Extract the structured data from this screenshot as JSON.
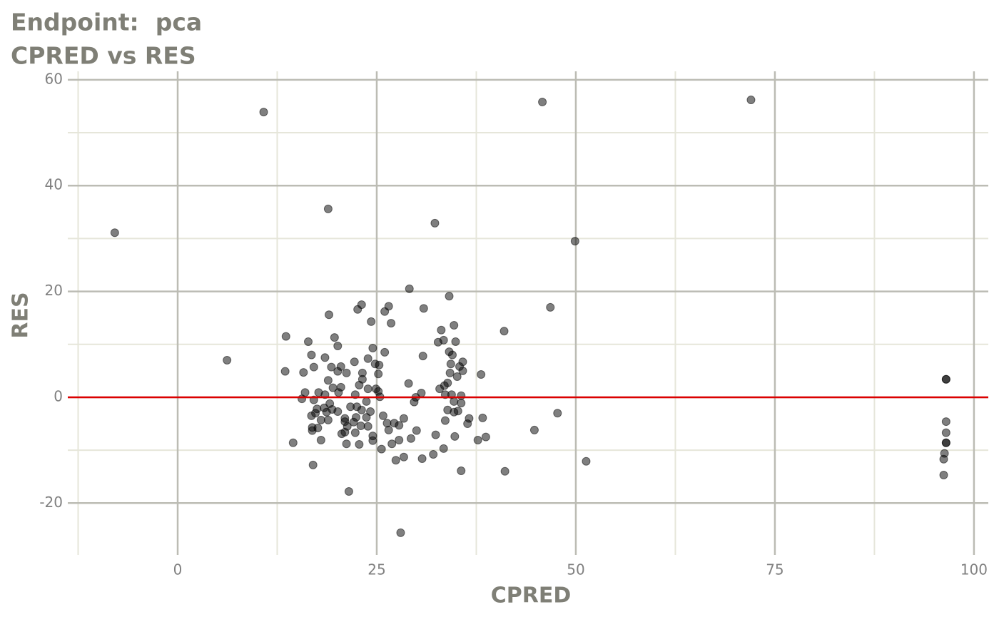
{
  "chart_data": {
    "type": "scatter",
    "title": "Endpoint:  pca",
    "subtitle": "CPRED vs RES",
    "x_label": "CPRED",
    "y_label": "RES",
    "xlim": [
      -13.8,
      101.8
    ],
    "ylim": [
      -29.8,
      61.6
    ],
    "xticks": [
      0,
      25,
      50,
      75,
      100
    ],
    "yticks": [
      -20,
      0,
      20,
      40,
      60
    ],
    "xminor": [
      -12.5,
      12.5,
      37.5,
      62.5,
      87.5
    ],
    "yminor": [
      -10,
      10,
      30,
      50
    ],
    "grid": true,
    "color": "#000000",
    "point_alpha": 0.5,
    "hline": 0,
    "hline_color": "#dd0000",
    "x": [
      -7.9,
      10.8,
      6.2,
      18.9,
      45.8,
      72.0,
      32.3,
      49.9,
      29.1,
      34.1,
      46.8,
      41.0,
      96.5,
      96.5,
      96.5,
      96.5,
      96.5,
      96.5,
      96.3,
      96.2,
      96.2,
      28.0,
      21.5,
      17.0,
      14.5,
      51.3,
      41.1,
      44.8,
      47.7,
      38.1,
      13.6,
      13.5,
      19.0,
      22.6,
      23.1,
      26.5,
      26.0,
      30.9,
      24.3,
      26.8,
      19.7,
      16.4,
      20.1,
      32.7,
      33.1,
      34.7,
      34.9,
      33.4,
      24.5,
      26.0,
      30.8,
      34.1,
      34.5,
      23.9,
      22.2,
      18.5,
      16.8,
      35.8,
      34.3,
      35.8,
      35.4,
      34.2,
      25.3,
      24.8,
      23.2,
      25.2,
      21.2,
      20.1,
      17.1,
      15.8,
      19.3,
      20.5,
      23.2,
      29.0,
      33.9,
      32.9,
      35.1,
      33.5,
      18.9,
      19.5,
      20.5,
      22.8,
      23.9,
      24.9,
      25.2,
      30.6,
      33.6,
      34.4,
      35.6,
      29.9,
      25.4,
      22.3,
      20.2,
      18.5,
      17.7,
      16.0,
      15.6,
      17.1,
      29.7,
      34.7,
      35.6,
      23.7,
      21.7,
      22.5,
      23.1,
      24.2,
      19.1,
      19.4,
      20.1,
      18.4,
      17.5,
      18.7,
      17.3,
      33.9,
      34.7,
      35.2,
      25.8,
      28.4,
      38.3,
      36.6,
      33.6,
      16.8,
      18.0,
      18.9,
      21.0,
      22.4,
      23.7,
      21.0,
      22.1,
      26.3,
      27.2,
      27.8,
      36.4,
      16.9,
      17.6,
      21.3,
      23.0,
      23.9,
      26.5,
      30.0,
      16.9,
      21.0,
      20.6,
      22.3,
      24.5,
      32.4,
      34.8,
      38.7,
      18.0,
      24.5,
      27.8,
      29.3,
      37.7,
      21.2,
      22.8,
      26.9,
      25.6,
      33.4,
      32.1,
      30.7,
      28.4,
      27.4,
      35.6
    ],
    "values": [
      31.1,
      53.9,
      7.0,
      35.6,
      55.8,
      56.2,
      32.9,
      29.5,
      20.5,
      19.1,
      17.0,
      12.5,
      3.4,
      3.4,
      -4.6,
      -6.7,
      -8.6,
      -8.6,
      -10.6,
      -11.7,
      -14.7,
      -25.6,
      -17.8,
      -12.8,
      -8.6,
      -12.1,
      -14.0,
      -6.2,
      -3.0,
      4.3,
      11.5,
      4.9,
      15.6,
      16.6,
      17.5,
      17.2,
      16.2,
      16.8,
      14.3,
      14.0,
      11.3,
      10.5,
      9.7,
      10.4,
      12.7,
      13.6,
      10.5,
      10.8,
      9.3,
      8.5,
      7.8,
      8.6,
      8.0,
      7.3,
      6.7,
      7.5,
      8.0,
      6.7,
      6.3,
      5.0,
      5.8,
      4.6,
      6.1,
      6.3,
      4.6,
      4.4,
      4.6,
      4.9,
      5.7,
      4.7,
      5.7,
      5.8,
      3.4,
      2.6,
      2.7,
      1.6,
      3.9,
      2.2,
      3.2,
      1.8,
      1.9,
      2.3,
      1.6,
      1.6,
      1.1,
      0.8,
      0.5,
      0.5,
      0.3,
      0.0,
      0.1,
      0.5,
      0.9,
      0.5,
      0.9,
      0.9,
      -0.3,
      -0.5,
      -0.9,
      -0.8,
      -1.1,
      -0.8,
      -1.8,
      -1.8,
      -2.4,
      -2.7,
      -1.2,
      -2.3,
      -2.7,
      -2.0,
      -2.2,
      -2.8,
      -3.0,
      -2.4,
      -2.8,
      -2.6,
      -3.5,
      -4.0,
      -3.9,
      -4.0,
      -4.4,
      -3.5,
      -4.3,
      -4.3,
      -4.0,
      -3.8,
      -3.8,
      -4.6,
      -4.7,
      -4.9,
      -4.9,
      -5.3,
      -5.0,
      -5.7,
      -5.8,
      -5.5,
      -5.4,
      -5.5,
      -6.2,
      -6.3,
      -6.3,
      -6.6,
      -6.9,
      -6.7,
      -7.3,
      -7.1,
      -7.4,
      -7.5,
      -8.1,
      -8.2,
      -8.1,
      -7.8,
      -8.1,
      -8.8,
      -8.9,
      -8.8,
      -9.8,
      -9.7,
      -10.8,
      -11.6,
      -11.3,
      -11.9,
      -13.9
    ]
  }
}
